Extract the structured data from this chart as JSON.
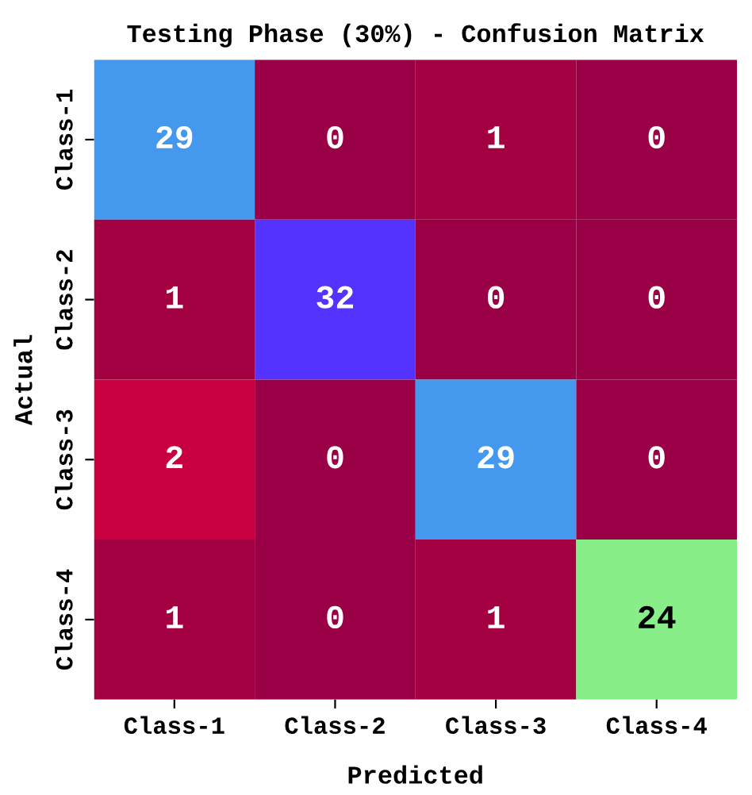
{
  "chart_data": {
    "type": "heatmap",
    "title": "Testing Phase (30%) - Confusion Matrix",
    "xlabel": "Predicted",
    "ylabel": "Actual",
    "categories": [
      "Class-1",
      "Class-2",
      "Class-3",
      "Class-4"
    ],
    "y_categories": [
      "Class-1",
      "Class-2",
      "Class-3",
      "Class-4"
    ],
    "cells": [
      [
        29,
        0,
        1,
        0
      ],
      [
        1,
        32,
        0,
        0
      ],
      [
        2,
        0,
        29,
        0
      ],
      [
        1,
        0,
        1,
        24
      ]
    ],
    "colors": [
      [
        "#4499ee",
        "#990045",
        "#a30042",
        "#990045"
      ],
      [
        "#a30042",
        "#5533ff",
        "#990045",
        "#990045"
      ],
      [
        "#c8003f",
        "#990045",
        "#4499ee",
        "#990045"
      ],
      [
        "#a30042",
        "#990045",
        "#a30042",
        "#88ee88"
      ]
    ],
    "data_labels": true
  }
}
